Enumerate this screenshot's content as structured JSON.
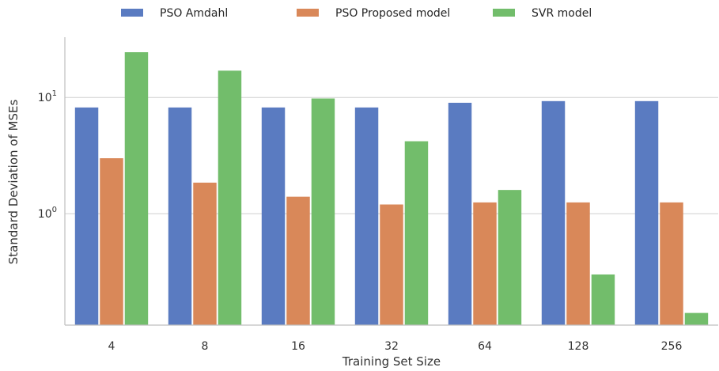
{
  "chart_data": {
    "type": "bar",
    "scale": "log",
    "xlabel": "Training Set Size",
    "ylabel": "Standard Deviation of MSEs",
    "categories": [
      "4",
      "8",
      "16",
      "32",
      "64",
      "128",
      "256"
    ],
    "series": [
      {
        "name": "PSO Amdahl",
        "color": "#5a7bc1",
        "values": [
          8.2,
          8.2,
          8.2,
          8.2,
          9.0,
          9.3,
          9.3
        ]
      },
      {
        "name": "PSO Proposed model",
        "color": "#d98859",
        "values": [
          3.0,
          1.85,
          1.4,
          1.2,
          1.25,
          1.25,
          1.25
        ]
      },
      {
        "name": "SVR model",
        "color": "#72bd6b",
        "values": [
          24.5,
          17.0,
          9.8,
          4.2,
          1.6,
          0.3,
          0.14
        ]
      }
    ],
    "ylim": [
      0.11,
      33
    ],
    "yticks": [
      {
        "value": 1,
        "base": "10",
        "exp": "0"
      },
      {
        "value": 10,
        "base": "10",
        "exp": "1"
      }
    ],
    "grid": true,
    "legend": "top-center"
  }
}
